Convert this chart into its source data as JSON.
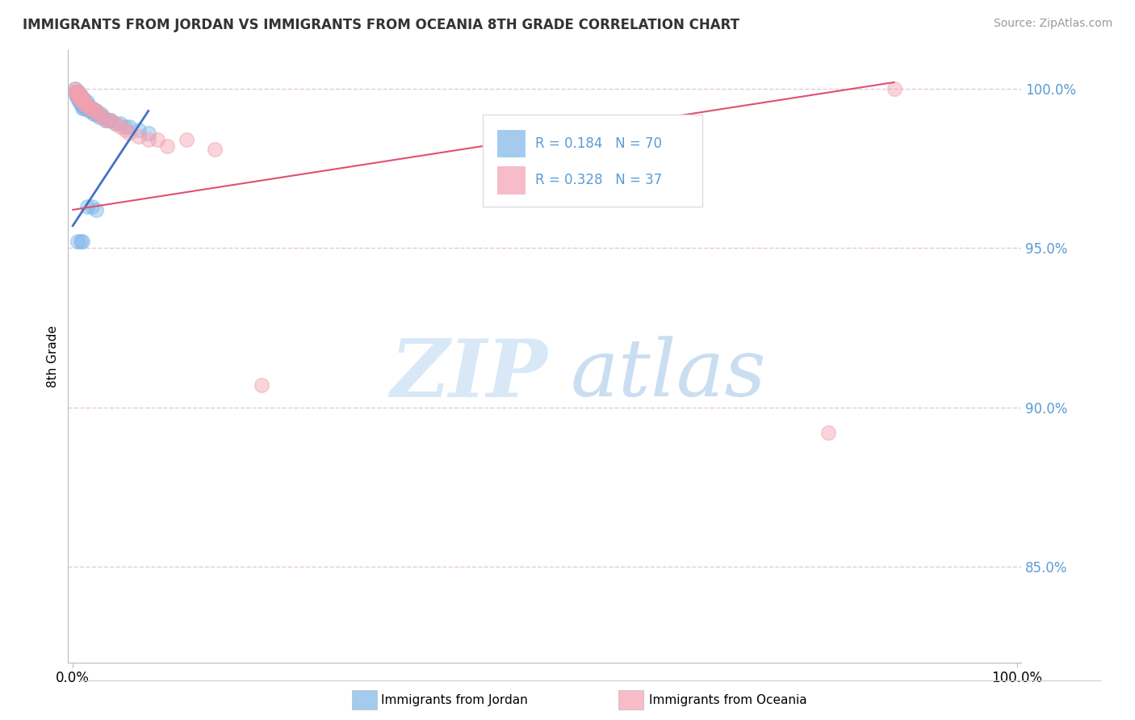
{
  "title": "IMMIGRANTS FROM JORDAN VS IMMIGRANTS FROM OCEANIA 8TH GRADE CORRELATION CHART",
  "source_text": "Source: ZipAtlas.com",
  "ylabel": "8th Grade",
  "xlim": [
    -0.005,
    1.005
  ],
  "ylim": [
    0.82,
    1.012
  ],
  "yticks": [
    0.85,
    0.9,
    0.95,
    1.0
  ],
  "ytick_labels": [
    "85.0%",
    "90.0%",
    "95.0%",
    "100.0%"
  ],
  "xtick_positions": [
    0.0,
    1.0
  ],
  "xtick_labels": [
    "0.0%",
    "100.0%"
  ],
  "legend_r_blue": "0.184",
  "legend_n_blue": "70",
  "legend_r_pink": "0.328",
  "legend_n_pink": "37",
  "blue_color": "#7EB6E8",
  "pink_color": "#F4A0B0",
  "line_blue_color": "#4472C4",
  "line_pink_color": "#E05070",
  "grid_color": "#E8C8D8",
  "tick_color": "#5B9BD5",
  "blue_x": [
    0.002,
    0.003,
    0.003,
    0.004,
    0.004,
    0.005,
    0.005,
    0.005,
    0.005,
    0.005,
    0.006,
    0.006,
    0.006,
    0.007,
    0.007,
    0.007,
    0.007,
    0.008,
    0.008,
    0.008,
    0.009,
    0.009,
    0.009,
    0.009,
    0.01,
    0.01,
    0.01,
    0.01,
    0.01,
    0.01,
    0.011,
    0.011,
    0.012,
    0.012,
    0.013,
    0.013,
    0.014,
    0.014,
    0.015,
    0.015,
    0.016,
    0.016,
    0.017,
    0.018,
    0.019,
    0.02,
    0.02,
    0.022,
    0.022,
    0.024,
    0.025,
    0.027,
    0.028,
    0.03,
    0.032,
    0.035,
    0.038,
    0.04,
    0.045,
    0.05,
    0.055,
    0.06,
    0.07,
    0.08,
    0.015,
    0.02,
    0.025,
    0.005,
    0.008,
    0.01
  ],
  "blue_y": [
    1.0,
    0.999,
    0.998,
    0.999,
    0.998,
    0.999,
    0.999,
    0.998,
    0.998,
    0.997,
    0.999,
    0.998,
    0.997,
    0.998,
    0.998,
    0.997,
    0.996,
    0.998,
    0.997,
    0.996,
    0.997,
    0.997,
    0.996,
    0.995,
    0.997,
    0.997,
    0.996,
    0.995,
    0.995,
    0.994,
    0.997,
    0.995,
    0.996,
    0.994,
    0.996,
    0.995,
    0.995,
    0.994,
    0.996,
    0.994,
    0.995,
    0.994,
    0.993,
    0.994,
    0.993,
    0.994,
    0.993,
    0.993,
    0.992,
    0.992,
    0.993,
    0.992,
    0.991,
    0.992,
    0.991,
    0.99,
    0.99,
    0.99,
    0.989,
    0.989,
    0.988,
    0.988,
    0.987,
    0.986,
    0.963,
    0.963,
    0.962,
    0.952,
    0.952,
    0.952
  ],
  "pink_x": [
    0.002,
    0.003,
    0.004,
    0.005,
    0.005,
    0.006,
    0.006,
    0.007,
    0.008,
    0.008,
    0.009,
    0.01,
    0.01,
    0.012,
    0.013,
    0.015,
    0.017,
    0.02,
    0.022,
    0.025,
    0.028,
    0.03,
    0.035,
    0.04,
    0.045,
    0.05,
    0.055,
    0.06,
    0.07,
    0.08,
    0.09,
    0.1,
    0.12,
    0.15,
    0.2,
    0.8,
    0.87
  ],
  "pink_y": [
    1.0,
    0.999,
    0.999,
    0.998,
    0.998,
    0.999,
    0.998,
    0.997,
    0.998,
    0.997,
    0.997,
    0.997,
    0.996,
    0.996,
    0.995,
    0.995,
    0.994,
    0.994,
    0.993,
    0.993,
    0.992,
    0.991,
    0.99,
    0.99,
    0.989,
    0.988,
    0.987,
    0.986,
    0.985,
    0.984,
    0.984,
    0.982,
    0.984,
    0.981,
    0.907,
    0.892,
    1.0
  ],
  "blue_line_x": [
    0.0,
    0.08
  ],
  "blue_line_y": [
    0.957,
    0.993
  ],
  "pink_line_x": [
    0.0,
    0.87
  ],
  "pink_line_y": [
    0.962,
    1.002
  ]
}
